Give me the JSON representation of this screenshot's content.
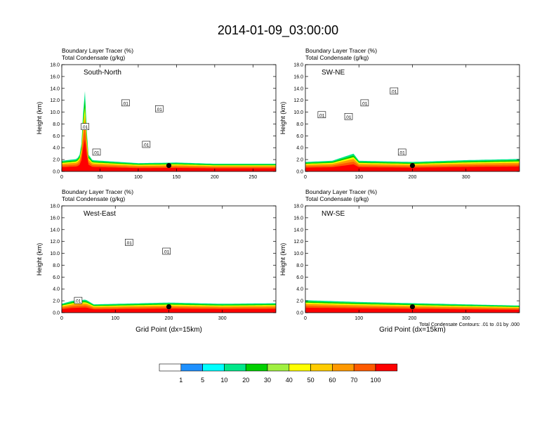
{
  "figure": {
    "title": "2014-01-09_03:00:00",
    "contour_note": "Total Condensate Contours: .01 to .01 by .000"
  },
  "colorbar": {
    "colors": [
      "#ffffff",
      "#1e90ff",
      "#00ffff",
      "#00e88a",
      "#00d000",
      "#a0f040",
      "#ffff00",
      "#ffcc00",
      "#ff9900",
      "#ff5a00",
      "#ff0000"
    ],
    "labels": [
      "1",
      "5",
      "10",
      "20",
      "30",
      "40",
      "50",
      "60",
      "70",
      "100"
    ]
  },
  "panel_text": {
    "tracer_label": "Boundary Layer Tracer   (%)",
    "condensate_label": "Total Condensate   (g/kg)",
    "ylabel": "Height (km)",
    "xlabel": "Grid Point (dx=15km)",
    "contour_label": ".01"
  },
  "chart_data": [
    {
      "type": "area",
      "panel_label": "South-North",
      "xlim": [
        0,
        280
      ],
      "ylim": [
        0,
        18
      ],
      "xticks": [
        0,
        50,
        100,
        150,
        200,
        250
      ],
      "yticks": [
        "0.0",
        "2.0",
        "4.0",
        "6.0",
        "8.0",
        "10.0",
        "12.0",
        "14.0",
        "16.0",
        "18.0"
      ],
      "xlabel": "",
      "ylabel": "Height (km)",
      "marker": {
        "x": 140,
        "y": 1.0
      },
      "tracer_top_km": [
        {
          "x": 0,
          "y": 1.8
        },
        {
          "x": 20,
          "y": 2.1
        },
        {
          "x": 25,
          "y": 3.2
        },
        {
          "x": 30,
          "y": 14.5
        },
        {
          "x": 34,
          "y": 3.0
        },
        {
          "x": 40,
          "y": 1.9
        },
        {
          "x": 100,
          "y": 1.4
        },
        {
          "x": 150,
          "y": 1.5
        },
        {
          "x": 200,
          "y": 1.3
        },
        {
          "x": 280,
          "y": 1.3
        }
      ],
      "condensate_contour_labels": [
        {
          "x": 30,
          "y": 7.5,
          "text": ".01"
        },
        {
          "x": 83,
          "y": 11.5,
          "text": ".01"
        },
        {
          "x": 127,
          "y": 10.5,
          "text": ".01"
        },
        {
          "x": 110,
          "y": 4.5,
          "text": ".01"
        },
        {
          "x": 45,
          "y": 3.2,
          "text": ".01"
        }
      ]
    },
    {
      "type": "area",
      "panel_label": "SW-NE",
      "xlim": [
        0,
        400
      ],
      "ylim": [
        0,
        18
      ],
      "xticks": [
        0,
        100,
        200,
        300
      ],
      "yticks": [
        "0.0",
        "2.0",
        "4.0",
        "6.0",
        "8.0",
        "10.0",
        "12.0",
        "14.0",
        "16.0",
        "18.0"
      ],
      "xlabel": "",
      "ylabel": "Height (km)",
      "marker": {
        "x": 200,
        "y": 1.0
      },
      "tracer_top_km": [
        {
          "x": 0,
          "y": 1.6
        },
        {
          "x": 50,
          "y": 1.8
        },
        {
          "x": 90,
          "y": 3.0
        },
        {
          "x": 100,
          "y": 1.8
        },
        {
          "x": 200,
          "y": 1.6
        },
        {
          "x": 300,
          "y": 1.9
        },
        {
          "x": 400,
          "y": 2.1
        }
      ],
      "condensate_contour_labels": [
        {
          "x": 30,
          "y": 9.5,
          "text": ".01"
        },
        {
          "x": 80,
          "y": 9.2,
          "text": ".01"
        },
        {
          "x": 110,
          "y": 11.5,
          "text": ".01"
        },
        {
          "x": 165,
          "y": 13.5,
          "text": ".01"
        },
        {
          "x": 180,
          "y": 3.2,
          "text": ".01"
        }
      ]
    },
    {
      "type": "area",
      "panel_label": "West-East",
      "xlim": [
        0,
        400
      ],
      "ylim": [
        0,
        18
      ],
      "xticks": [
        0,
        100,
        200,
        300
      ],
      "yticks": [
        "0.0",
        "2.0",
        "4.0",
        "6.0",
        "8.0",
        "10.0",
        "12.0",
        "14.0",
        "16.0",
        "18.0"
      ],
      "xlabel": "Grid Point (dx=15km)",
      "ylabel": "Height (km)",
      "marker": {
        "x": 200,
        "y": 1.0
      },
      "tracer_top_km": [
        {
          "x": 0,
          "y": 1.5
        },
        {
          "x": 20,
          "y": 2.0
        },
        {
          "x": 45,
          "y": 2.2
        },
        {
          "x": 60,
          "y": 1.4
        },
        {
          "x": 200,
          "y": 1.7
        },
        {
          "x": 300,
          "y": 1.5
        },
        {
          "x": 400,
          "y": 1.6
        }
      ],
      "condensate_contour_labels": [
        {
          "x": 30,
          "y": 2.0,
          "text": ".01"
        },
        {
          "x": 125,
          "y": 11.8,
          "text": ".01"
        },
        {
          "x": 195,
          "y": 10.3,
          "text": ".01"
        }
      ]
    },
    {
      "type": "area",
      "panel_label": "NW-SE",
      "xlim": [
        0,
        400
      ],
      "ylim": [
        0,
        18
      ],
      "xticks": [
        0,
        100,
        200,
        300
      ],
      "yticks": [
        "0.0",
        "2.0",
        "4.0",
        "6.0",
        "8.0",
        "10.0",
        "12.0",
        "14.0",
        "16.0",
        "18.0"
      ],
      "xlabel": "Grid Point (dx=15km)",
      "ylabel": "Height (km)",
      "marker": {
        "x": 200,
        "y": 1.0
      },
      "tracer_top_km": [
        {
          "x": 0,
          "y": 2.1
        },
        {
          "x": 100,
          "y": 1.8
        },
        {
          "x": 200,
          "y": 1.6
        },
        {
          "x": 300,
          "y": 1.4
        },
        {
          "x": 400,
          "y": 1.2
        }
      ],
      "condensate_contour_labels": []
    }
  ]
}
